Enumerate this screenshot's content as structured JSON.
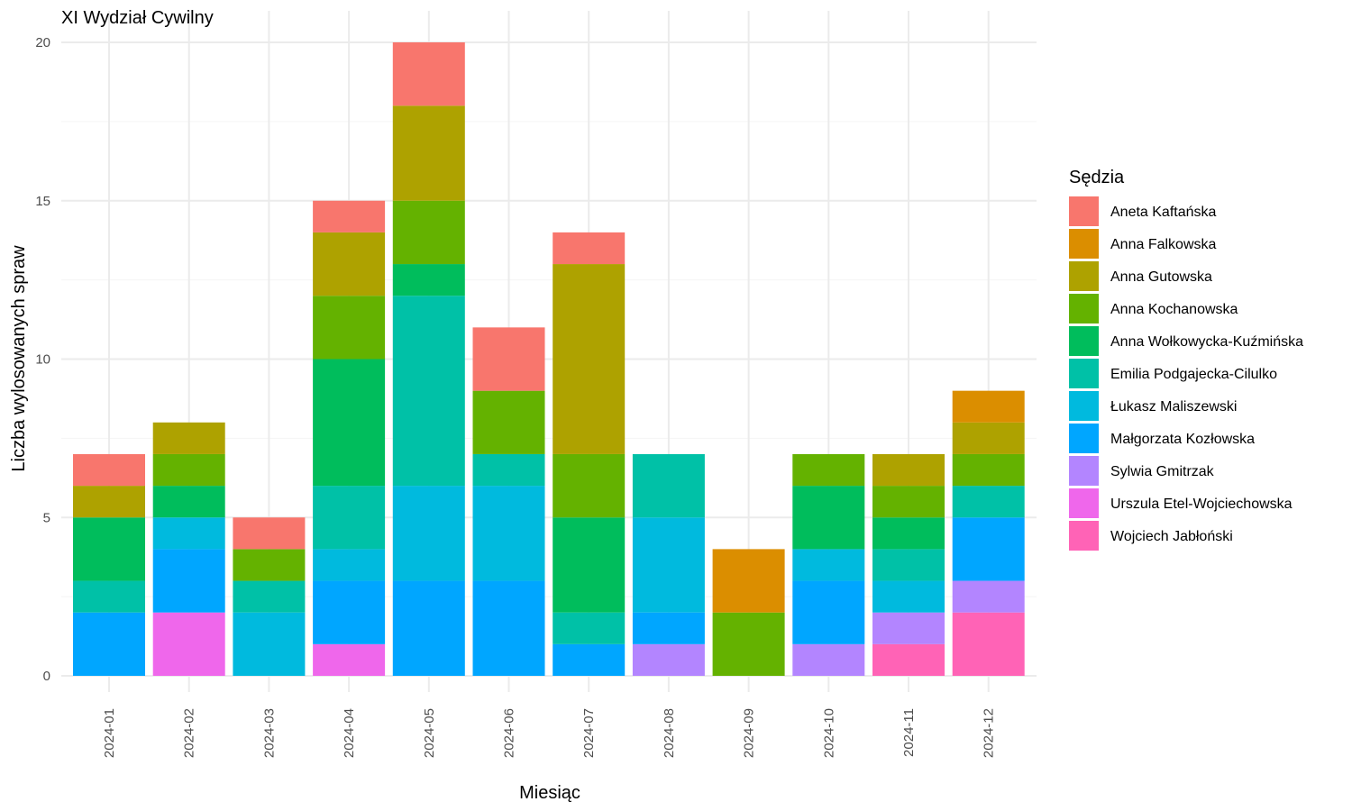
{
  "chart_data": {
    "type": "bar",
    "stacked": true,
    "title": "XI Wydział Cywilny",
    "xlabel": "Miesiąc",
    "ylabel": "Liczba wylosowanych spraw",
    "ylim": [
      0,
      20
    ],
    "yticks": [
      0,
      5,
      10,
      15,
      20
    ],
    "grid": true,
    "legend_title": "Sędzia",
    "legend_position": "right",
    "categories": [
      "2024-01",
      "2024-02",
      "2024-03",
      "2024-04",
      "2024-05",
      "2024-06",
      "2024-07",
      "2024-08",
      "2024-09",
      "2024-10",
      "2024-11",
      "2024-12"
    ],
    "series": [
      {
        "name": "Aneta Kaftańska",
        "color": "#F8766D",
        "values": [
          1,
          0,
          1,
          1,
          2,
          2,
          1,
          0,
          0,
          0,
          0,
          0
        ]
      },
      {
        "name": "Anna Falkowska",
        "color": "#DB8E00",
        "values": [
          0,
          0,
          0,
          0,
          0,
          0,
          0,
          0,
          2,
          0,
          0,
          1
        ]
      },
      {
        "name": "Anna Gutowska",
        "color": "#AEA200",
        "values": [
          1,
          1,
          0,
          2,
          3,
          0,
          6,
          0,
          0,
          0,
          1,
          1
        ]
      },
      {
        "name": "Anna Kochanowska",
        "color": "#64B200",
        "values": [
          0,
          1,
          1,
          2,
          2,
          2,
          2,
          0,
          2,
          1,
          1,
          1
        ]
      },
      {
        "name": "Anna Wołkowycka-Kuźmińska",
        "color": "#00BD5C",
        "values": [
          2,
          1,
          0,
          4,
          1,
          0,
          3,
          0,
          0,
          2,
          1,
          0
        ]
      },
      {
        "name": "Emilia Podgajecka-Cilulko",
        "color": "#00C1A7",
        "values": [
          1,
          0,
          1,
          2,
          6,
          1,
          1,
          2,
          0,
          0,
          1,
          1
        ]
      },
      {
        "name": "Łukasz Maliszewski",
        "color": "#00BADE",
        "values": [
          0,
          1,
          2,
          1,
          3,
          3,
          0,
          3,
          0,
          1,
          1,
          0
        ]
      },
      {
        "name": "Małgorzata Kozłowska",
        "color": "#00A6FF",
        "values": [
          2,
          2,
          0,
          2,
          3,
          3,
          1,
          1,
          0,
          2,
          0,
          2
        ]
      },
      {
        "name": "Sylwia Gmitrzak",
        "color": "#B385FF",
        "values": [
          0,
          0,
          0,
          0,
          0,
          0,
          0,
          1,
          0,
          1,
          1,
          1
        ]
      },
      {
        "name": "Urszula Etel-Wojciechowska",
        "color": "#EF67EB",
        "values": [
          0,
          2,
          0,
          1,
          0,
          0,
          0,
          0,
          0,
          0,
          0,
          0
        ]
      },
      {
        "name": "Wojciech Jabłoński",
        "color": "#FF63B6",
        "values": [
          0,
          0,
          0,
          0,
          0,
          0,
          0,
          0,
          0,
          0,
          1,
          2
        ]
      }
    ]
  }
}
